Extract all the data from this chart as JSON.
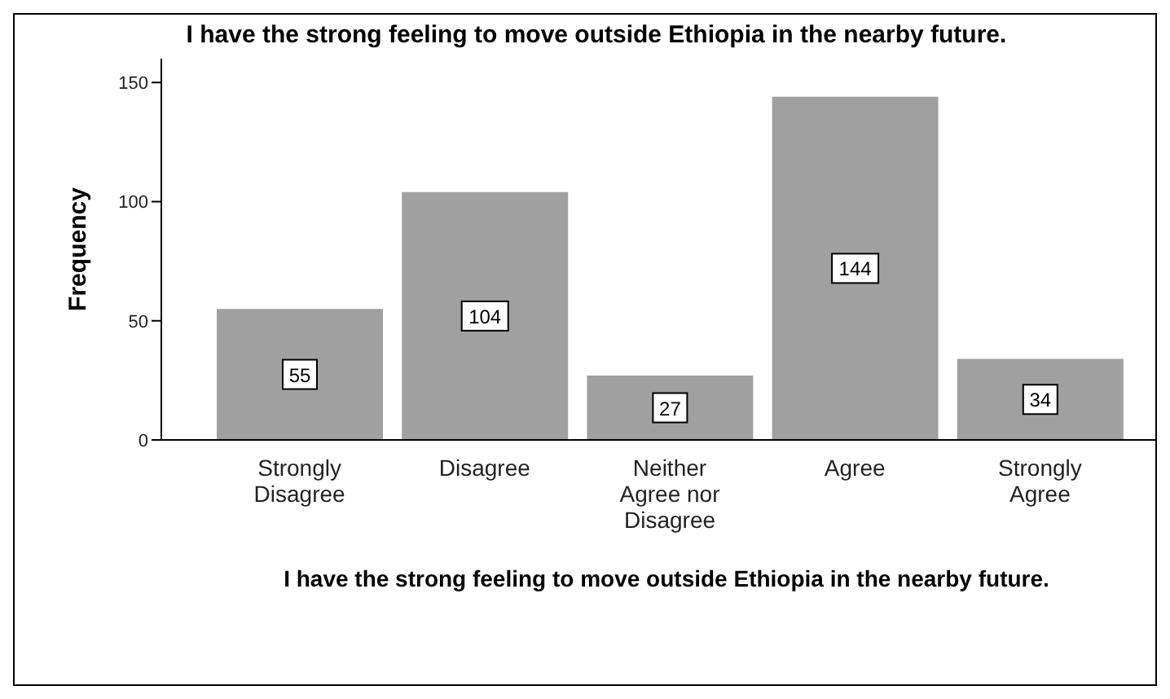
{
  "chart_data": {
    "type": "bar",
    "title": "I have the strong feeling to move outside Ethiopia in the nearby future.",
    "xlabel": "I have the strong feeling to move outside Ethiopia in the nearby future.",
    "ylabel": "Frequency",
    "categories": [
      "Strongly Disagree",
      "Disagree",
      "Neither Agree nor Disagree",
      "Agree",
      "Strongly Agree"
    ],
    "values": [
      55,
      104,
      27,
      144,
      34
    ],
    "color": "#a0a0a0",
    "ylim": [
      0,
      160
    ],
    "yticks": [
      0,
      50,
      100,
      150
    ],
    "data_labels": true,
    "grid": false,
    "legend": false
  }
}
